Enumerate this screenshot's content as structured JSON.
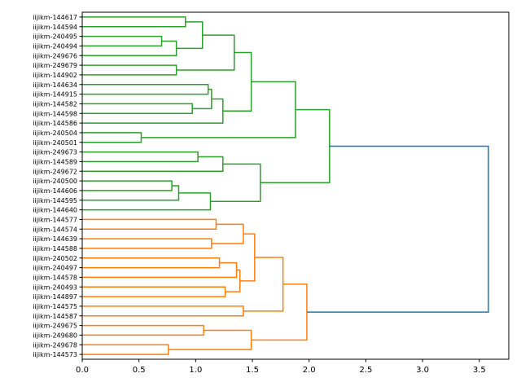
{
  "chart_data": {
    "type": "dendrogram",
    "orientation": "right",
    "title": "",
    "xlabel": "",
    "ylabel": "",
    "xlim": [
      0,
      3.76
    ],
    "xticks": [
      "0.0",
      "0.5",
      "1.0",
      "1.5",
      "2.0",
      "2.5",
      "3.0",
      "3.5"
    ],
    "xtick_values": [
      0,
      0.5,
      1.0,
      1.5,
      2.0,
      2.5,
      3.0,
      3.5
    ],
    "colors": {
      "g": "#2ca02c",
      "o": "#ff7f0e",
      "b": "#1f77b4"
    },
    "leaves": [
      "iijikm-144617",
      "iijikm-144594",
      "iijikm-240495",
      "iijikm-240494",
      "iijikm-249676",
      "iijikm-249679",
      "iijikm-144902",
      "iijikm-144634",
      "iijikm-144915",
      "iijikm-144582",
      "iijikm-144598",
      "iijikm-144586",
      "iijikm-240504",
      "iijikm-240501",
      "iijikm-249673",
      "iijikm-144589",
      "iijikm-249672",
      "iijikm-240500",
      "iijikm-144606",
      "iijikm-144595",
      "iijikm-144640",
      "iijikm-144577",
      "iijikm-144574",
      "iijikm-144639",
      "iijikm-144588",
      "iijikm-240502",
      "iijikm-240497",
      "iijikm-144578",
      "iijikm-240493",
      "iijikm-144897",
      "iijikm-144575",
      "iijikm-144587",
      "iijikm-249675",
      "iijikm-249680",
      "iijikm-249678",
      "iijikm-144573"
    ],
    "links": [
      [
        "L0",
        "L1",
        0.91,
        "g"
      ],
      [
        "L2",
        "L3",
        0.7,
        "g"
      ],
      [
        "N1",
        "L4",
        0.83,
        "g"
      ],
      [
        "N0",
        "N2",
        1.06,
        "g"
      ],
      [
        "L5",
        "L6",
        0.83,
        "g"
      ],
      [
        "N3",
        "N4",
        1.34,
        "g"
      ],
      [
        "L7",
        "L8",
        1.11,
        "g"
      ],
      [
        "L9",
        "L10",
        0.97,
        "g"
      ],
      [
        "N6",
        "N7",
        1.14,
        "g"
      ],
      [
        "N8",
        "L11",
        1.24,
        "g"
      ],
      [
        "N5",
        "N9",
        1.49,
        "g"
      ],
      [
        "L12",
        "L13",
        0.52,
        "g"
      ],
      [
        "N10",
        "N11",
        1.88,
        "g"
      ],
      [
        "L14",
        "L15",
        1.02,
        "g"
      ],
      [
        "N13",
        "L16",
        1.24,
        "g"
      ],
      [
        "L17",
        "L18",
        0.79,
        "g"
      ],
      [
        "N15",
        "L19",
        0.85,
        "g"
      ],
      [
        "N16",
        "L20",
        1.13,
        "g"
      ],
      [
        "N14",
        "N17",
        1.57,
        "g"
      ],
      [
        "N12",
        "N18",
        2.18,
        "g"
      ],
      [
        "L21",
        "L22",
        1.18,
        "o"
      ],
      [
        "L23",
        "L24",
        1.14,
        "o"
      ],
      [
        "N20",
        "N21",
        1.42,
        "o"
      ],
      [
        "L25",
        "L26",
        1.21,
        "o"
      ],
      [
        "N23",
        "L27",
        1.36,
        "o"
      ],
      [
        "L28",
        "L29",
        1.26,
        "o"
      ],
      [
        "N24",
        "N25",
        1.39,
        "o"
      ],
      [
        "N22",
        "N26",
        1.52,
        "o"
      ],
      [
        "L30",
        "L31",
        1.42,
        "o"
      ],
      [
        "N27",
        "N28",
        1.77,
        "o"
      ],
      [
        "L32",
        "L33",
        1.07,
        "o"
      ],
      [
        "L34",
        "L35",
        0.76,
        "o"
      ],
      [
        "N30",
        "N31",
        1.49,
        "o"
      ],
      [
        "N29",
        "N32",
        1.98,
        "o"
      ],
      [
        "N19",
        "N33",
        3.58,
        "b"
      ]
    ]
  }
}
